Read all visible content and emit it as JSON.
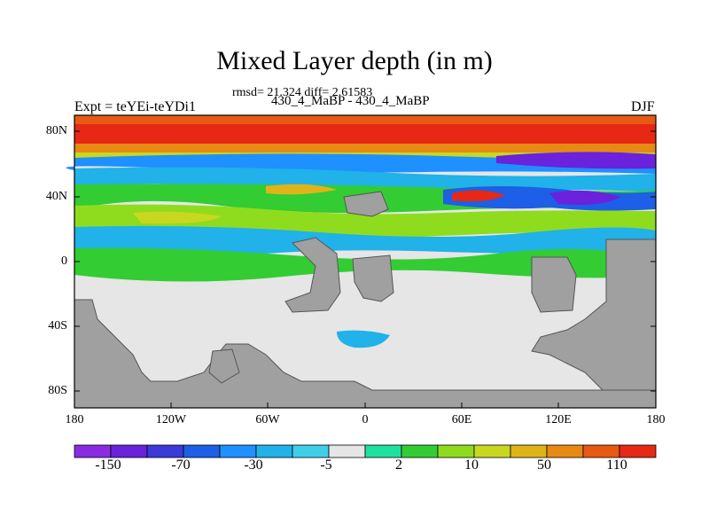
{
  "title": "Mixed Layer depth (in m)",
  "stats": "rmsd= 21.324 diff= 2.61583",
  "case_line": "430_4_MaBP - 430_4_MaBP",
  "left_label": "Expt = teYEi-teYDi1",
  "right_label": "DJF",
  "lat_ticks": [
    "80N",
    "40N",
    "0",
    "40S",
    "80S"
  ],
  "lon_ticks": [
    "180",
    "120W",
    "60W",
    "0",
    "60E",
    "120E",
    "180"
  ],
  "colorbar": {
    "colors": [
      "#8a2be2",
      "#6a22dc",
      "#3b3bd9",
      "#1d5fe6",
      "#1e90ff",
      "#20b2e8",
      "#40cfe8",
      "#e6e6e6",
      "#20e0a0",
      "#33cc33",
      "#8fdc1e",
      "#c8d820",
      "#e0b418",
      "#e68a14",
      "#e65a14",
      "#e62814"
    ],
    "labels": [
      "-150",
      "-70",
      "-30",
      "-5",
      "2",
      "10",
      "50",
      "110"
    ]
  },
  "colors": {
    "land": "#a0a0a0",
    "ocean_neutral": "#e6e6e6",
    "frame": "#000000"
  }
}
